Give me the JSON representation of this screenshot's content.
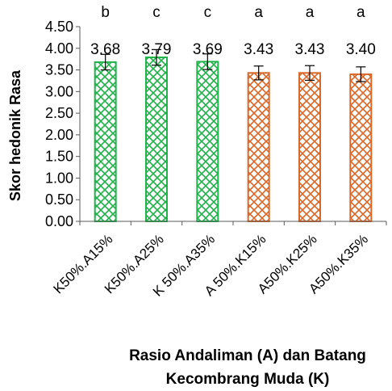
{
  "chart_data": {
    "type": "bar",
    "title": "",
    "ylabel": "Skor hedonik Rasa",
    "xlabel_lines": [
      "Rasio Andaliman (A) dan Batang",
      "Kecombrang Muda (K)"
    ],
    "categories": [
      "K50%.A15%",
      "K50%.A25%",
      "K 50%.A35%",
      "A 50%.K15%",
      "A50%.K25%",
      "A50%.K35%"
    ],
    "values": [
      3.68,
      3.79,
      3.69,
      3.43,
      3.43,
      3.4
    ],
    "value_labels": [
      "3.68",
      "3.79",
      "3.69",
      "3.43",
      "3.43",
      "3.40"
    ],
    "errors": [
      0.18,
      0.18,
      0.18,
      0.16,
      0.17,
      0.17
    ],
    "significance": [
      "b",
      "c",
      "c",
      "a",
      "a",
      "a"
    ],
    "ylim": [
      0,
      4.5
    ],
    "yticks": [
      "0.00",
      "0.50",
      "1.00",
      "1.50",
      "2.00",
      "2.50",
      "3.00",
      "3.50",
      "4.00",
      "4.50"
    ],
    "bar_colors": [
      "#21b24b",
      "#21b24b",
      "#21b24b",
      "#d8692a",
      "#d8692a",
      "#d8692a"
    ],
    "grid": false,
    "legend": "none"
  }
}
